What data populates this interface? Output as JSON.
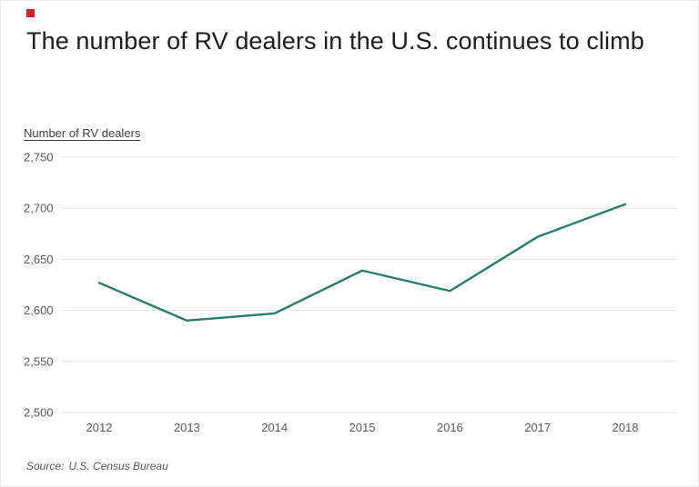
{
  "brand": {
    "mark_color": "#c9252d"
  },
  "header": {
    "title": "The number of RV dealers in the U.S. continues to climb"
  },
  "axis": {
    "y_label": "Number of RV dealers"
  },
  "footer": {
    "source_label": "Source:",
    "source_value": "U.S. Census Bureau"
  },
  "chart_data": {
    "type": "line",
    "title": "The number of RV dealers in the U.S. continues to climb",
    "ylabel": "Number of RV dealers",
    "xlabel": "",
    "x": [
      2012,
      2013,
      2014,
      2015,
      2016,
      2017,
      2018
    ],
    "values": [
      2627,
      2590,
      2597,
      2639,
      2619,
      2672,
      2704
    ],
    "ylim": [
      2500,
      2750
    ],
    "ytick_step": 50,
    "ytick_labels": [
      "2,500",
      "2,550",
      "2,600",
      "2,650",
      "2,700",
      "2,750"
    ],
    "grid": true,
    "legend": "none",
    "line_color": "#2a7d6e",
    "grid_color": "#e3e3e3",
    "tick_color": "#5a5a5a",
    "source": "Source: U.S. Census Bureau"
  }
}
